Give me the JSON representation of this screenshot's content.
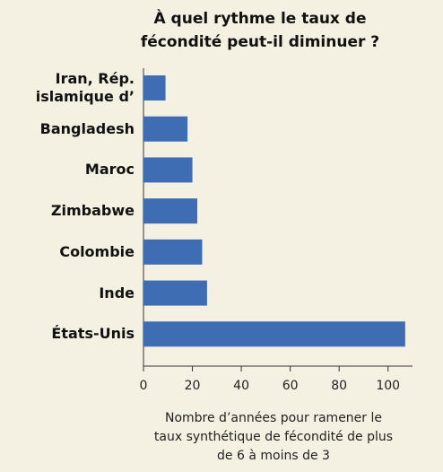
{
  "chart_data": {
    "type": "bar",
    "orientation": "horizontal",
    "title": "À quel rythme le taux de fécondité peut-il diminuer ?",
    "x_label": "Nombre d’années pour ramener le taux synthétique de fécondité de plus de 6 à moins de 3",
    "categories": [
      "Iran, Rép. islamique d’",
      "Bangladesh",
      "Maroc",
      "Zimbabwe",
      "Colombie",
      "Inde",
      "États-Unis"
    ],
    "values": [
      9,
      18,
      20,
      22,
      24,
      26,
      107
    ],
    "color": "#3f6db3",
    "xlim": [
      0,
      110
    ],
    "xticks": [
      0,
      20,
      40,
      60,
      80,
      100
    ],
    "grid": false
  }
}
